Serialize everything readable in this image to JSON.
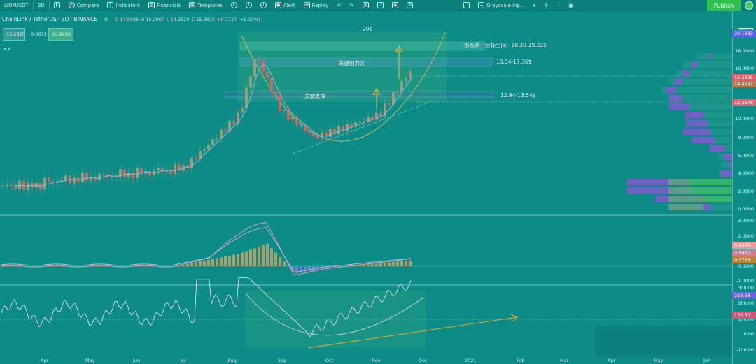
{
  "toolbar": {
    "symbol": "LINKUSDT",
    "interval": "3D",
    "compare": "Compare",
    "indicators": "Indicators",
    "financials": "Financials",
    "templates": "Templates",
    "alert": "Alert",
    "replay": "Replay",
    "layout_name": "Grayscale inp...",
    "publish": "Publish",
    "f_icon": "F",
    "t_icon": "T",
    "i_icon": "I"
  },
  "legend": {
    "title": "ChainLink / TetherUS · 3D · BINANCE",
    "open": "O 14.5096",
    "high": "H 16.2900",
    "low": "L 14.2520",
    "close": "C 15.2825",
    "change": "+0.7727 (+5.33%)",
    "bid": "15.2825",
    "spread": "0.0073",
    "ask": "15.2898",
    "collapse_count": "4"
  },
  "annotations": {
    "target": "20$",
    "first_target": "形态第一目标空间：18.39-19.22$",
    "resistance_label": "关键阻力区",
    "resistance_range": "16.54-17.36$",
    "support_label": "关键支撑",
    "support_range": "12.94-13.54$"
  },
  "price_axis": {
    "unit": "USDT",
    "labels": [
      "18.0000",
      "16.0000",
      "12.0000",
      "10.0000",
      "8.0000",
      "6.0000",
      "4.0000",
      "2.0000",
      "0.0000"
    ],
    "tags": [
      {
        "text": "20.1383",
        "color": "#5a63e6"
      },
      {
        "text": "15.2825",
        "color": "#e45a6a"
      },
      {
        "text": "14.4597",
        "color": "#b07a55"
      },
      {
        "text": "12.2678",
        "color": "#d76a7a"
      }
    ]
  },
  "macd_axis": {
    "labels": [
      "3.0000",
      "2.0000",
      "1.0000",
      "0.0000",
      "-1.0000"
    ],
    "tags": [
      {
        "text": "0.9448",
        "color": "#e89a9a"
      },
      {
        "text": "0.5670",
        "color": "#d07a8a"
      },
      {
        "text": "0.3778",
        "color": "#b8863a"
      }
    ]
  },
  "cci_axis": {
    "labels": [
      "300.00",
      "200.00",
      "100.00",
      "0.00",
      "-100.00"
    ],
    "tags": [
      {
        "text": "259.68",
        "color": "#6a62d8"
      },
      {
        "text": "132.90",
        "color": "#d0577a"
      }
    ]
  },
  "time_axis": [
    "Apr",
    "May",
    "Jun",
    "Jul",
    "Aug",
    "Sep",
    "Oct",
    "Nov",
    "Dec",
    "2021",
    "Feb",
    "Mar",
    "Apr",
    "May",
    "Jun"
  ],
  "colors": {
    "up": "#8fa07a",
    "down": "#c46a6a",
    "macd_line": "#e8a3a3",
    "signal_line": "#c8b3e8",
    "target_zone": "#3db8a6",
    "arrow": "#e0b040",
    "volume_profile": "#8a55d6"
  }
}
